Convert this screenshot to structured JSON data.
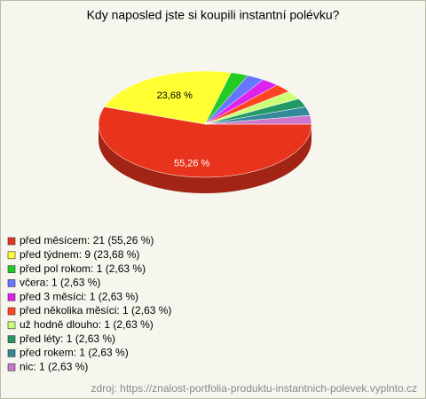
{
  "chart_data": {
    "type": "pie",
    "title": "Kdy naposled jste si koupili instantní polévku?",
    "categories": [
      "před měsícem: 21 (55,26 %)",
      "před týdnem: 9 (23,68 %)",
      "před pol rokom: 1 (2,63 %)",
      "včera: 1 (2,63 %)",
      "před 3 měsíci: 1 (2,63 %)",
      "před několika měsíci: 1 (2,63 %)",
      "už hodně dlouho: 1 (2,63 %)",
      "před léty: 1 (2,63 %)",
      "před rokem: 1 (2,63 %)",
      "nic: 1 (2,63 %)"
    ],
    "values": [
      55.26,
      23.68,
      2.63,
      2.63,
      2.63,
      2.63,
      2.63,
      2.63,
      2.63,
      2.63
    ],
    "value_labels": [
      "55,26 %",
      "23,68 %",
      null,
      null,
      null,
      null,
      null,
      null,
      null,
      null
    ],
    "colors": [
      "#e8341c",
      "#ffff33",
      "#22cc22",
      "#6677ff",
      "#dd22ee",
      "#ff4422",
      "#ccff77",
      "#229966",
      "#338899",
      "#cc77cc"
    ],
    "source": "zdroj: https://znalost-portfolia-produktu-instantnich-polevek.vyplnto.cz"
  }
}
